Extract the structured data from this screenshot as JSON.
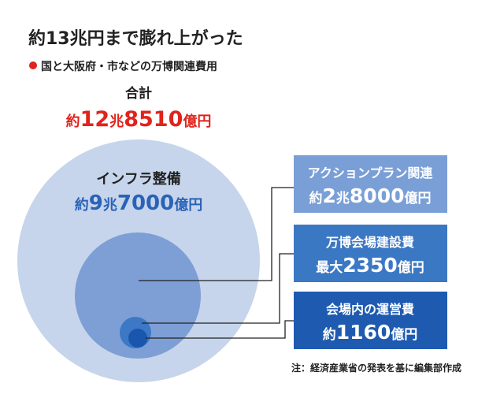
{
  "header": {
    "title": "約13兆円まで膨れ上がった",
    "subtitle": "国と大阪府・市などの万博関連費用"
  },
  "total": {
    "label": "合計",
    "value_parts": [
      "約",
      "12",
      "兆",
      "8510",
      "億円"
    ]
  },
  "infrastructure": {
    "label": "インフラ整備",
    "value_parts": [
      "約",
      "9",
      "兆",
      "7000",
      "億円"
    ]
  },
  "boxes": [
    {
      "label": "アクションプラン関連",
      "value_parts": [
        "約",
        "2",
        "兆",
        "8000",
        "億円"
      ]
    },
    {
      "label": "万博会場建設費",
      "value_parts": [
        "最大",
        "2350",
        "億円"
      ]
    },
    {
      "label": "会場内の運営費",
      "value_parts": [
        "約",
        "1160",
        "億円"
      ]
    }
  ],
  "note": "注：経済産業省の発表を基に編集部作成"
}
